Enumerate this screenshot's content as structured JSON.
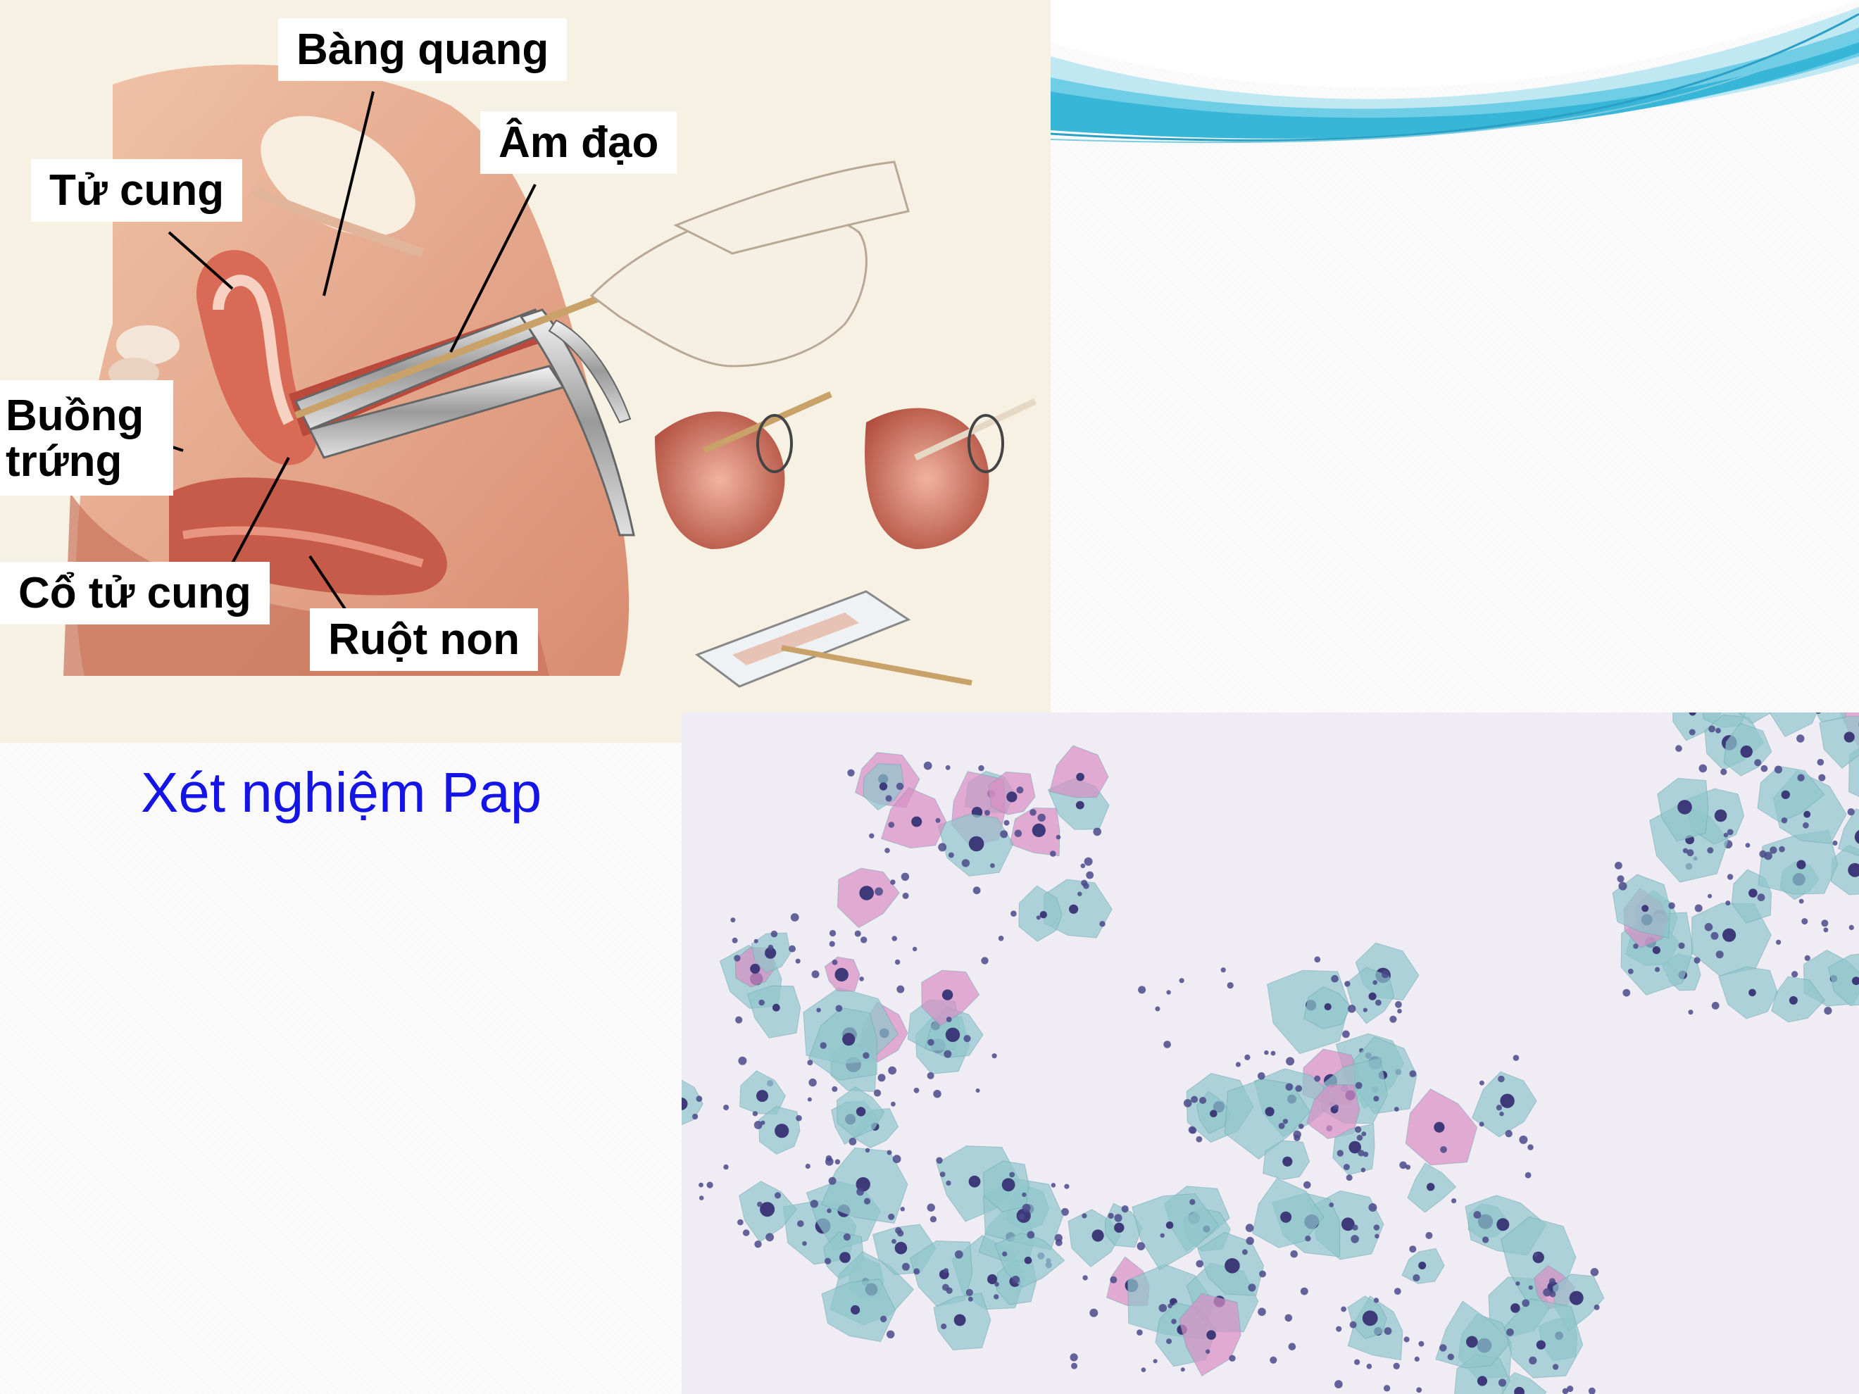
{
  "labels": {
    "bang_quang": "Bàng quang",
    "am_dao": "Âm đạo",
    "tu_cung": "Tử cung",
    "buong_trung": "Buồng\ntrứng",
    "co_tu_cung": "Cổ tử cung",
    "ruot_non": "Ruột non"
  },
  "caption": "Xét nghiệm Pap",
  "colors": {
    "caption": "#1414e6",
    "wave_light": "#bfe8f3",
    "wave_dark": "#38b6d8",
    "tissue": "#d9876b",
    "smear_cyan": "#8fc6cc",
    "smear_pink": "#d88fc4",
    "nucleus": "#3e3a7a"
  }
}
